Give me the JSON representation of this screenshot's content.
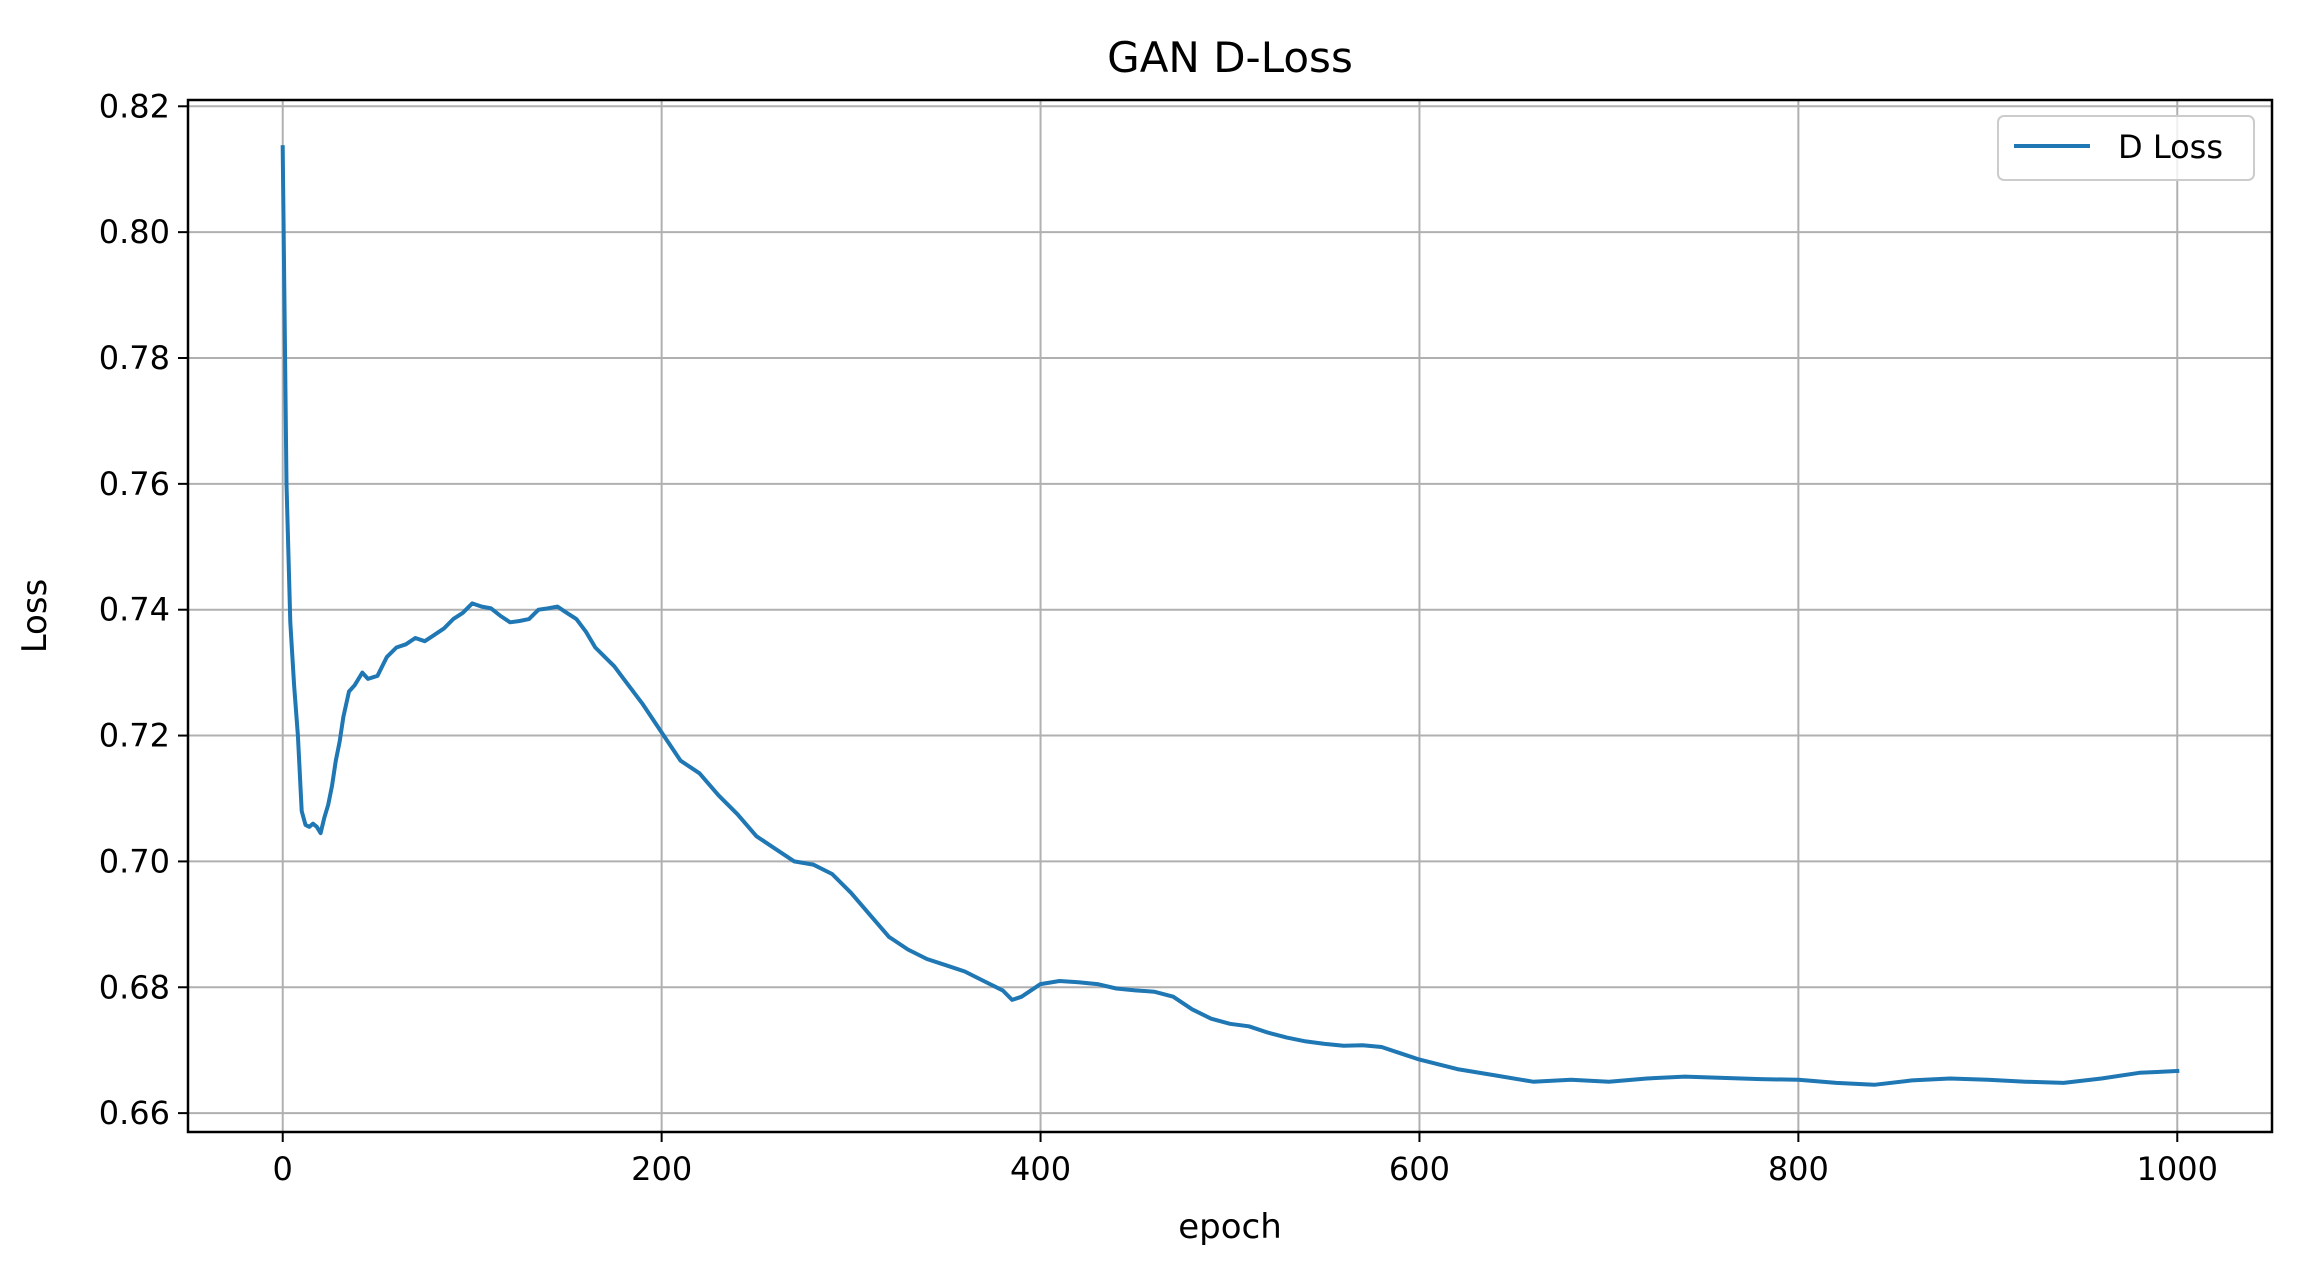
{
  "chart_data": {
    "type": "line",
    "title": "GAN D-Loss",
    "xlabel": "epoch",
    "ylabel": "Loss",
    "xlim": [
      -50,
      1050
    ],
    "ylim": [
      0.657,
      0.821
    ],
    "x_ticks": [
      0,
      200,
      400,
      600,
      800,
      1000
    ],
    "x_tick_labels": [
      "0",
      "200",
      "400",
      "600",
      "800",
      "1000"
    ],
    "y_ticks": [
      0.66,
      0.68,
      0.7,
      0.72,
      0.74,
      0.76,
      0.78,
      0.8,
      0.82
    ],
    "y_tick_labels": [
      "0.66",
      "0.68",
      "0.70",
      "0.72",
      "0.74",
      "0.76",
      "0.78",
      "0.80",
      "0.82"
    ],
    "grid": true,
    "legend_position": "top-right",
    "series": [
      {
        "name": "D Loss",
        "color": "#1f77b4",
        "x": [
          0,
          2,
          4,
          6,
          8,
          10,
          12,
          14,
          16,
          18,
          20,
          22,
          24,
          26,
          28,
          30,
          32,
          35,
          38,
          42,
          45,
          50,
          55,
          60,
          65,
          70,
          75,
          80,
          85,
          90,
          95,
          100,
          105,
          110,
          115,
          120,
          125,
          130,
          135,
          140,
          145,
          150,
          155,
          160,
          165,
          170,
          175,
          180,
          190,
          200,
          210,
          220,
          230,
          240,
          250,
          260,
          270,
          280,
          290,
          300,
          310,
          320,
          330,
          340,
          350,
          360,
          370,
          380,
          385,
          390,
          400,
          410,
          420,
          430,
          440,
          450,
          460,
          470,
          480,
          490,
          500,
          510,
          520,
          530,
          540,
          550,
          560,
          570,
          580,
          590,
          600,
          620,
          640,
          660,
          680,
          700,
          720,
          740,
          760,
          780,
          800,
          820,
          840,
          860,
          880,
          900,
          920,
          940,
          960,
          980,
          1000
        ],
        "y": [
          0.8135,
          0.76,
          0.738,
          0.728,
          0.72,
          0.708,
          0.7058,
          0.7055,
          0.706,
          0.7055,
          0.7045,
          0.707,
          0.709,
          0.712,
          0.716,
          0.719,
          0.723,
          0.727,
          0.728,
          0.73,
          0.729,
          0.7295,
          0.7325,
          0.734,
          0.7345,
          0.7355,
          0.735,
          0.736,
          0.737,
          0.7385,
          0.7395,
          0.741,
          0.7405,
          0.7402,
          0.739,
          0.738,
          0.7382,
          0.7385,
          0.74,
          0.7402,
          0.7405,
          0.7395,
          0.7385,
          0.7365,
          0.734,
          0.7325,
          0.731,
          0.729,
          0.725,
          0.7205,
          0.716,
          0.714,
          0.7105,
          0.7075,
          0.704,
          0.702,
          0.7,
          0.6995,
          0.698,
          0.695,
          0.6915,
          0.688,
          0.686,
          0.6845,
          0.6835,
          0.6825,
          0.681,
          0.6795,
          0.678,
          0.6785,
          0.6805,
          0.681,
          0.6808,
          0.6805,
          0.6798,
          0.6795,
          0.6793,
          0.6785,
          0.6765,
          0.675,
          0.6742,
          0.6738,
          0.6728,
          0.672,
          0.6714,
          0.671,
          0.6707,
          0.6708,
          0.6705,
          0.6695,
          0.6685,
          0.667,
          0.666,
          0.665,
          0.6653,
          0.665,
          0.6655,
          0.6658,
          0.6656,
          0.6654,
          0.6653,
          0.6648,
          0.6645,
          0.6652,
          0.6655,
          0.6653,
          0.665,
          0.6648,
          0.6655,
          0.6664,
          0.6667
        ]
      }
    ]
  }
}
